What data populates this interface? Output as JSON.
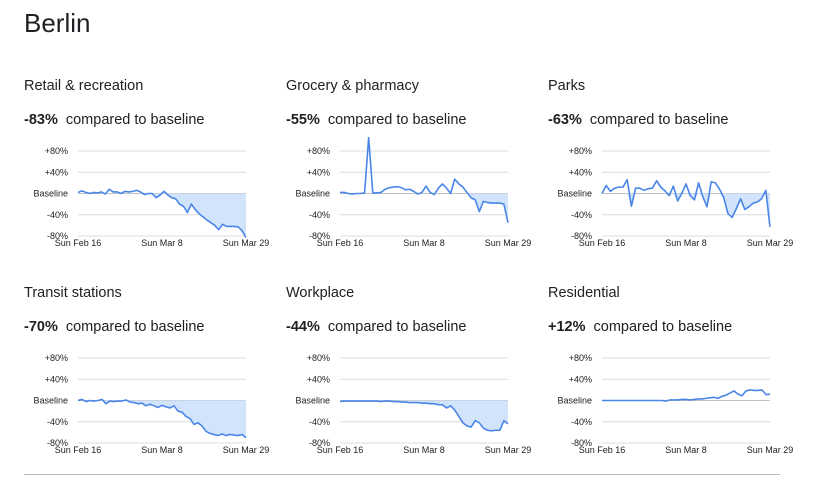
{
  "city": "Berlin",
  "compared_label": "compared to baseline",
  "y_tick_labels": [
    "+80%",
    "+40%",
    "Baseline",
    "-40%",
    "-80%"
  ],
  "x_tick_labels": [
    "Sun Feb 16",
    "Sun Mar 8",
    "Sun Mar 29"
  ],
  "colors": {
    "line": "#4a86e8",
    "fill": "#d2e3fc",
    "grid": "#dadce0"
  },
  "chart_data": [
    {
      "type": "area",
      "title": "Retail & recreation",
      "summary": "-83%",
      "y_ticks": [
        80,
        40,
        0,
        -40,
        -80
      ],
      "ylim": [
        -80,
        80
      ],
      "x_tick_labels": [
        "Sun Feb 16",
        "Sun Mar 8",
        "Sun Mar 29"
      ],
      "x_tick_days": [
        0,
        21,
        42
      ],
      "values": [
        2,
        5,
        2,
        0,
        2,
        1,
        3,
        -1,
        8,
        3,
        3,
        0,
        4,
        3,
        4,
        6,
        3,
        -2,
        0,
        0,
        -8,
        -3,
        4,
        -3,
        -8,
        -10,
        -20,
        -24,
        -36,
        -20,
        -30,
        -38,
        -44,
        -50,
        -55,
        -60,
        -68,
        -58,
        -62,
        -62,
        -62,
        -63,
        -70,
        -83
      ]
    },
    {
      "type": "area",
      "title": "Grocery & pharmacy",
      "summary": "-55%",
      "y_ticks": [
        80,
        40,
        0,
        -40,
        -80
      ],
      "ylim": [
        -80,
        80
      ],
      "x_tick_labels": [
        "Sun Feb 16",
        "Sun Mar 8",
        "Sun Mar 29"
      ],
      "x_tick_days": [
        0,
        21,
        42
      ],
      "values": [
        2,
        2,
        0,
        -1,
        0,
        0,
        1,
        105,
        1,
        1,
        2,
        8,
        11,
        12,
        13,
        11,
        7,
        8,
        4,
        -1,
        2,
        14,
        2,
        -2,
        10,
        18,
        10,
        0,
        27,
        18,
        12,
        2,
        -8,
        -12,
        -34,
        -15,
        -17,
        -18,
        -18,
        -18,
        -20,
        -55
      ]
    },
    {
      "type": "area",
      "title": "Parks",
      "summary": "-63%",
      "y_ticks": [
        80,
        40,
        0,
        -40,
        -80
      ],
      "ylim": [
        -80,
        80
      ],
      "x_tick_labels": [
        "Sun Feb 16",
        "Sun Mar 8",
        "Sun Mar 29"
      ],
      "x_tick_days": [
        0,
        21,
        42
      ],
      "values": [
        0,
        15,
        4,
        10,
        12,
        12,
        26,
        -24,
        10,
        10,
        6,
        9,
        10,
        24,
        12,
        5,
        -4,
        14,
        -14,
        0,
        18,
        -4,
        -12,
        20,
        -6,
        -25,
        22,
        20,
        8,
        -8,
        -38,
        -45,
        -28,
        -10,
        -30,
        -25,
        -18,
        -16,
        -10,
        6,
        -63
      ]
    },
    {
      "type": "area",
      "title": "Transit stations",
      "summary": "-70%",
      "y_ticks": [
        80,
        40,
        0,
        -40,
        -80
      ],
      "ylim": [
        -80,
        80
      ],
      "x_tick_labels": [
        "Sun Feb 16",
        "Sun Mar 8",
        "Sun Mar 29"
      ],
      "x_tick_days": [
        0,
        21,
        42
      ],
      "values": [
        0,
        2,
        -2,
        0,
        -1,
        0,
        2,
        -6,
        -1,
        -2,
        -1,
        -1,
        1,
        -3,
        -4,
        -6,
        -5,
        -10,
        -7,
        -10,
        -13,
        -9,
        -12,
        -14,
        -10,
        -20,
        -22,
        -30,
        -34,
        -45,
        -42,
        -48,
        -58,
        -62,
        -64,
        -66,
        -63,
        -66,
        -64,
        -65,
        -66,
        -64,
        -70
      ]
    },
    {
      "type": "area",
      "title": "Workplace",
      "summary": "-44%",
      "y_ticks": [
        80,
        40,
        0,
        -40,
        -80
      ],
      "ylim": [
        -80,
        80
      ],
      "x_tick_labels": [
        "Sun Feb 16",
        "Sun Mar 8",
        "Sun Mar 29"
      ],
      "x_tick_days": [
        0,
        21,
        42
      ],
      "values": [
        -2,
        -1,
        -1,
        -1,
        -1,
        -1,
        -1,
        -1,
        -1,
        -1,
        -2,
        -1,
        -1,
        -2,
        -2,
        -3,
        -3,
        -4,
        -4,
        -4,
        -5,
        -5,
        -6,
        -6,
        -8,
        -8,
        -14,
        -10,
        -18,
        -30,
        -42,
        -48,
        -50,
        -38,
        -42,
        -52,
        -56,
        -57,
        -56,
        -56,
        -38,
        -44
      ]
    },
    {
      "type": "area",
      "title": "Residential",
      "summary": "+12%",
      "y_ticks": [
        80,
        40,
        0,
        -40,
        -80
      ],
      "ylim": [
        -80,
        80
      ],
      "x_tick_labels": [
        "Sun Feb 16",
        "Sun Mar 8",
        "Sun Mar 29"
      ],
      "x_tick_days": [
        0,
        21,
        42
      ],
      "values": [
        0,
        0,
        0,
        0,
        0,
        0,
        0,
        0,
        0,
        0,
        0,
        0,
        0,
        0,
        0,
        0,
        -1,
        1,
        1,
        1,
        2,
        2,
        1,
        2,
        3,
        3,
        4,
        5,
        6,
        4,
        8,
        10,
        14,
        18,
        12,
        9,
        18,
        20,
        19,
        19,
        20,
        11,
        12
      ]
    }
  ]
}
